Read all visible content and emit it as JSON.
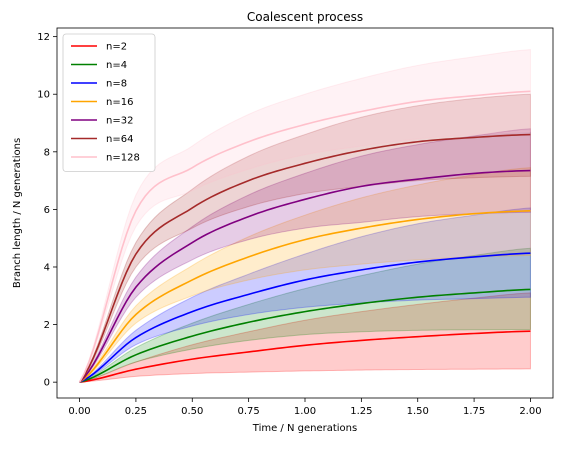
{
  "chart_data": {
    "type": "line",
    "title": "Coalescent process",
    "xlabel": "Time / N generations",
    "ylabel": "Branch length / N generations",
    "xlim": [
      -0.1,
      2.1
    ],
    "ylim": [
      -0.55,
      12.3
    ],
    "xticks": [
      "0.00",
      "0.25",
      "0.50",
      "0.75",
      "1.00",
      "1.25",
      "1.50",
      "1.75",
      "2.00"
    ],
    "yticks": [
      "0",
      "2",
      "4",
      "6",
      "8",
      "10",
      "12"
    ],
    "legend_position": "top-left",
    "x": [
      0.0,
      0.25,
      0.5,
      0.75,
      1.0,
      1.25,
      1.5,
      1.75,
      2.0
    ],
    "series": [
      {
        "name": "n=2",
        "color": "#ff0000",
        "fill": "#ff0000",
        "mean": [
          0,
          0.45,
          0.8,
          1.05,
          1.28,
          1.45,
          1.58,
          1.69,
          1.77
        ],
        "lower": [
          0,
          0.2,
          0.3,
          0.35,
          0.39,
          0.42,
          0.44,
          0.45,
          0.46
        ],
        "upper": [
          0,
          0.7,
          1.3,
          1.75,
          2.15,
          2.45,
          2.7,
          2.92,
          3.1
        ]
      },
      {
        "name": "n=4",
        "color": "#008000",
        "fill": "#008000",
        "mean": [
          0,
          0.95,
          1.6,
          2.08,
          2.45,
          2.73,
          2.95,
          3.1,
          3.22
        ],
        "lower": [
          0,
          0.7,
          1.15,
          1.45,
          1.65,
          1.75,
          1.8,
          1.82,
          1.83
        ],
        "upper": [
          0,
          1.2,
          2.05,
          2.7,
          3.25,
          3.7,
          4.1,
          4.4,
          4.65
        ]
      },
      {
        "name": "n=8",
        "color": "#0000ff",
        "fill": "#0000ff",
        "mean": [
          0,
          1.55,
          2.45,
          3.05,
          3.55,
          3.9,
          4.17,
          4.35,
          4.48
        ],
        "lower": [
          0,
          1.3,
          1.95,
          2.35,
          2.6,
          2.75,
          2.85,
          2.9,
          2.95
        ],
        "upper": [
          0,
          1.8,
          2.95,
          3.75,
          4.45,
          5.05,
          5.5,
          5.8,
          6.05
        ]
      },
      {
        "name": "n=16",
        "color": "#ffa500",
        "fill": "#ffa500",
        "mean": [
          0,
          2.35,
          3.55,
          4.35,
          4.95,
          5.35,
          5.65,
          5.85,
          5.95
        ],
        "lower": [
          0,
          2.05,
          3.0,
          3.55,
          3.9,
          4.1,
          4.25,
          4.35,
          4.4
        ],
        "upper": [
          0,
          2.65,
          4.05,
          5.05,
          5.8,
          6.4,
          6.85,
          7.2,
          7.45
        ]
      },
      {
        "name": "n=32",
        "color": "#800080",
        "fill": "#800080",
        "mean": [
          0,
          3.3,
          4.85,
          5.75,
          6.35,
          6.8,
          7.05,
          7.25,
          7.35
        ],
        "lower": [
          0,
          2.95,
          4.25,
          4.95,
          5.35,
          5.55,
          5.75,
          5.85,
          5.9
        ],
        "upper": [
          0,
          3.65,
          5.4,
          6.5,
          7.25,
          7.85,
          8.25,
          8.55,
          8.8
        ]
      },
      {
        "name": "n=64",
        "color": "#a52a2a",
        "fill": "#a52a2a",
        "mean": [
          0,
          4.45,
          6.05,
          7.0,
          7.6,
          8.05,
          8.35,
          8.5,
          8.6
        ],
        "lower": [
          0,
          4.0,
          5.35,
          6.1,
          6.55,
          6.8,
          7.0,
          7.1,
          7.15
        ],
        "upper": [
          0,
          4.85,
          6.7,
          7.85,
          8.6,
          9.2,
          9.6,
          9.85,
          10.0
        ]
      },
      {
        "name": "n=128",
        "color": "#ffc0cb",
        "fill": "#ffc0cb",
        "mean": [
          0,
          5.95,
          7.45,
          8.35,
          8.95,
          9.4,
          9.75,
          9.95,
          10.1
        ],
        "lower": [
          0,
          5.4,
          6.65,
          7.4,
          7.9,
          8.2,
          8.45,
          8.6,
          8.7
        ],
        "upper": [
          0,
          6.5,
          8.2,
          9.3,
          10.0,
          10.55,
          11.0,
          11.3,
          11.55
        ]
      }
    ]
  }
}
